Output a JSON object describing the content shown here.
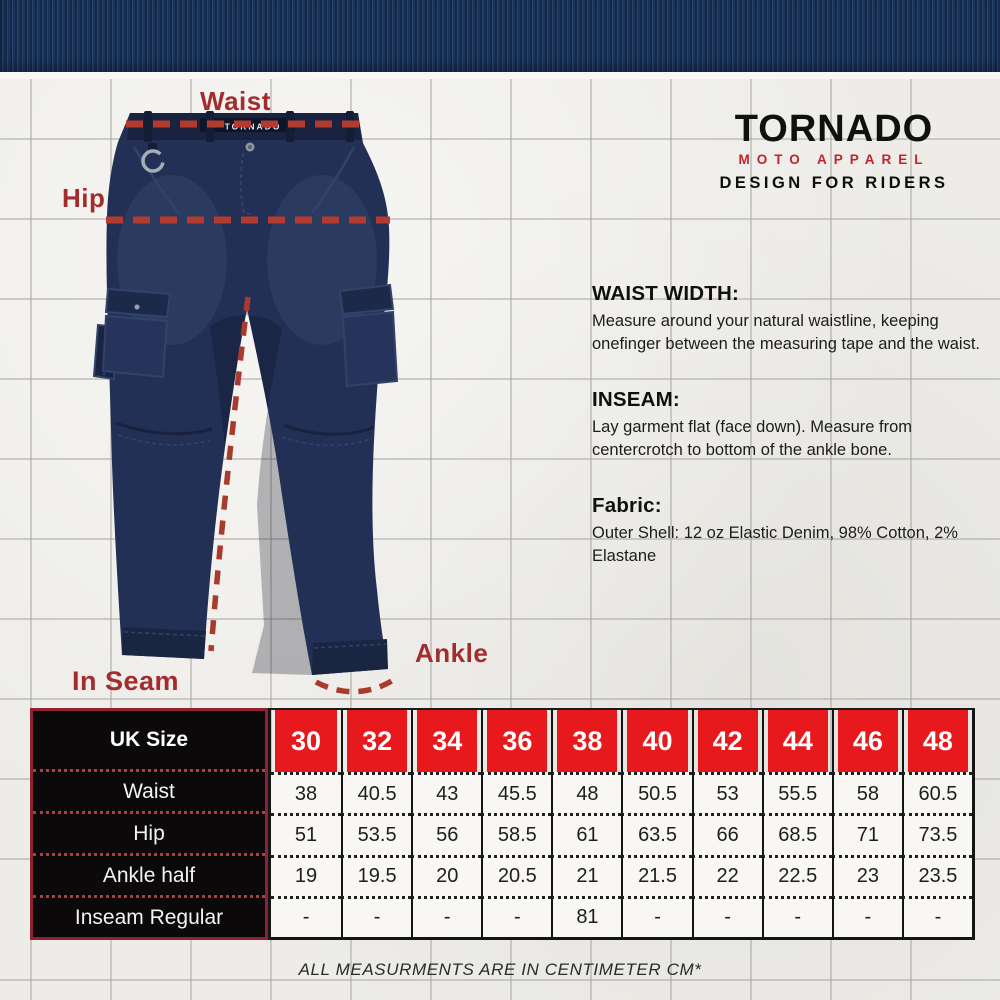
{
  "brand": {
    "name": "TORNADO",
    "tagline": "MOTO APPAREL",
    "motto": "DESIGN FOR RIDERS"
  },
  "measurement_labels": {
    "waist": "Waist",
    "hip": "Hip",
    "ankle": "Ankle",
    "inseam": "In Seam"
  },
  "info_sections": [
    {
      "heading": "WAIST WIDTH:",
      "body": "Measure around your natural waistline, keeping onefinger between the measuring tape and the waist."
    },
    {
      "heading": "INSEAM:",
      "body": "Lay garment flat (face down). Measure from centercrotch to bottom of the ankle bone."
    },
    {
      "heading": "Fabric:",
      "body": "Outer Shell: 12 oz Elastic Denim, 98% Cotton, 2% Elastane"
    }
  ],
  "size_table": {
    "header_label": "UK Size",
    "sizes": [
      "30",
      "32",
      "34",
      "36",
      "38",
      "40",
      "42",
      "44",
      "46",
      "48"
    ],
    "rows": [
      {
        "label": "Waist",
        "values": [
          "38",
          "40.5",
          "43",
          "45.5",
          "48",
          "50.5",
          "53",
          "55.5",
          "58",
          "60.5"
        ]
      },
      {
        "label": "Hip",
        "values": [
          "51",
          "53.5",
          "56",
          "58.5",
          "61",
          "63.5",
          "66",
          "68.5",
          "71",
          "73.5"
        ]
      },
      {
        "label": "Ankle half",
        "values": [
          "19",
          "19.5",
          "20",
          "20.5",
          "21",
          "21.5",
          "22",
          "22.5",
          "23",
          "23.5"
        ]
      },
      {
        "label": "Inseam Regular",
        "values": [
          "-",
          "-",
          "-",
          "-",
          "81",
          "-",
          "-",
          "-",
          "-",
          "-"
        ]
      }
    ]
  },
  "footer_note": "ALL MEASURMENTS ARE IN CENTIMETER CM*",
  "colors": {
    "band_navy": "#1b3357",
    "pants_navy": "#223055",
    "accent_red": "#e8191d",
    "label_red": "#a32c2c",
    "dash_red": "#b23a2e",
    "table_border_red": "#8e2233",
    "table_black": "#0b090a"
  }
}
